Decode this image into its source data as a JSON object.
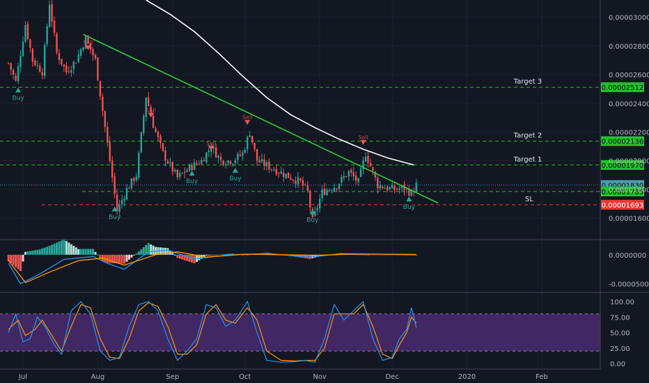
{
  "chart_data": {
    "type": "candlestick",
    "colors": {
      "background": "#131722",
      "up": "#26a69a",
      "down": "#ef5350",
      "ma_line": "#ffffff",
      "trendline": "#2ecc40",
      "level_green": "#22c12a",
      "level_red": "#e53935",
      "current_price": "#4a9fb0",
      "buy_marker": "#26a69a",
      "sell_marker": "#ef5350",
      "macd_line": "#2196f3",
      "signal_line": "#ff9800",
      "hist_pos_strong": "#26a69a",
      "hist_pos_weak": "#b2dfdb",
      "hist_neg_strong": "#ef5350",
      "hist_neg_weak": "#ffcdd2",
      "stoch_band": "#4a2a6e",
      "stoch_k": "#2196f3",
      "stoch_d": "#ff9800"
    },
    "price_axis": {
      "min": 1.45e-05,
      "max": 3.12e-05,
      "ticks": [
        "0.00003000",
        "0.00002800",
        "0.00002600",
        "0.00002400",
        "0.00002200",
        "0.00002000",
        "0.00001800",
        "0.00001600"
      ]
    },
    "x_axis": {
      "labels": [
        "Jul",
        "Aug",
        "Sep",
        "Oct",
        "Nov",
        "Dec",
        "2020",
        "Feb"
      ]
    },
    "levels": [
      {
        "name": "Target 3",
        "value": "0.00002512",
        "style": "green"
      },
      {
        "name": "Target 2",
        "value": "0.00002136",
        "style": "green"
      },
      {
        "name": "Target 1",
        "value": "0.00001970",
        "style": "green"
      },
      {
        "name": "",
        "value": "0.00001830",
        "style": "current"
      },
      {
        "name": "",
        "value": "0.00001785",
        "style": "green"
      },
      {
        "name": "SL",
        "value": "0.00001693",
        "style": "red"
      }
    ],
    "trendline": {
      "from": [
        "Jul 26",
        2.88e-05
      ],
      "to": [
        "Dec 20",
        1.705e-05
      ]
    },
    "ma_line": [
      [
        "Aug 21",
        3.12e-05
      ],
      [
        "Aug 31",
        3.02e-05
      ],
      [
        "Sep 10",
        2.9e-05
      ],
      [
        "Sep 20",
        2.75e-05
      ],
      [
        "Sep 30",
        2.59e-05
      ],
      [
        "Oct 10",
        2.44e-05
      ],
      [
        "Oct 20",
        2.32e-05
      ],
      [
        "Oct 30",
        2.23e-05
      ],
      [
        "Nov 9",
        2.15e-05
      ],
      [
        "Nov 19",
        2.08e-05
      ],
      [
        "Nov 29",
        2.02e-05
      ],
      [
        "Dec 10",
        1.97e-05
      ]
    ],
    "markers": [
      {
        "type": "buy",
        "label": "Buy",
        "date": "Jun 29",
        "price": 2.51e-05
      },
      {
        "type": "sell",
        "label": "Sell",
        "date": "Jul 28",
        "price": 2.77e-05
      },
      {
        "type": "buy",
        "label": "Buy",
        "date": "Aug 8",
        "price": 1.68e-05
      },
      {
        "type": "sell",
        "label": "Sell",
        "date": "Aug 23",
        "price": 2.3e-05
      },
      {
        "type": "buy",
        "label": "Buy",
        "date": "Sep 9",
        "price": 1.93e-05
      },
      {
        "type": "sell",
        "label": "Sell",
        "date": "Sep 17",
        "price": 2.07e-05
      },
      {
        "type": "buy",
        "label": "Buy",
        "date": "Sep 27",
        "price": 1.95e-05
      },
      {
        "type": "sell",
        "label": "Sell",
        "date": "Oct 2",
        "price": 2.25e-05
      },
      {
        "type": "buy",
        "label": "Buy",
        "date": "Oct 29",
        "price": 1.66e-05
      },
      {
        "type": "sell",
        "label": "Sell",
        "date": "Nov 19",
        "price": 2.11e-05
      },
      {
        "type": "buy",
        "label": "Buy",
        "date": "Dec 8",
        "price": 1.75e-05
      }
    ],
    "price_path": [
      [
        "Jun 25",
        2.68e-05
      ],
      [
        "Jun 28",
        2.55e-05
      ],
      [
        "Jul 2",
        2.95e-05
      ],
      [
        "Jul 5",
        2.7e-05
      ],
      [
        "Jul 9",
        2.62e-05
      ],
      [
        "Jul 12",
        3.1e-05
      ],
      [
        "Jul 15",
        2.75e-05
      ],
      [
        "Jul 19",
        2.62e-05
      ],
      [
        "Jul 23",
        2.7e-05
      ],
      [
        "Jul 27",
        2.85e-05
      ],
      [
        "Jul 31",
        2.7e-05
      ],
      [
        "Aug 3",
        2.35e-05
      ],
      [
        "Aug 6",
        2e-05
      ],
      [
        "Aug 9",
        1.65e-05
      ],
      [
        "Aug 13",
        1.8e-05
      ],
      [
        "Aug 17",
        1.9e-05
      ],
      [
        "Aug 21",
        2.45e-05
      ],
      [
        "Aug 24",
        2.25e-05
      ],
      [
        "Aug 28",
        2.05e-05
      ],
      [
        "Sep 3",
        1.88e-05
      ],
      [
        "Sep 8",
        1.95e-05
      ],
      [
        "Sep 13",
        2e-05
      ],
      [
        "Sep 17",
        2.1e-05
      ],
      [
        "Sep 21",
        2e-05
      ],
      [
        "Sep 26",
        2e-05
      ],
      [
        "Sep 30",
        2.05e-05
      ],
      [
        "Oct 3",
        2.2e-05
      ],
      [
        "Oct 6",
        2e-05
      ],
      [
        "Oct 12",
        1.95e-05
      ],
      [
        "Oct 18",
        1.9e-05
      ],
      [
        "Oct 24",
        1.85e-05
      ],
      [
        "Oct 27",
        1.78e-05
      ],
      [
        "Oct 29",
        1.58e-05
      ],
      [
        "Nov 2",
        1.78e-05
      ],
      [
        "Nov 8",
        1.83e-05
      ],
      [
        "Nov 13",
        1.92e-05
      ],
      [
        "Nov 17",
        1.85e-05
      ],
      [
        "Nov 20",
        2.05e-05
      ],
      [
        "Nov 25",
        1.83e-05
      ],
      [
        "Dec 1",
        1.8e-05
      ],
      [
        "Dec 6",
        1.81e-05
      ],
      [
        "Dec 9",
        1.77e-05
      ],
      [
        "Dec 11",
        1.83e-05
      ]
    ],
    "macd": {
      "axis_ticks": [
        "0.0000000",
        "-0.0000500"
      ],
      "range": [
        -6.5e-05,
        2.5e-05
      ],
      "macd": [
        [
          "Jun 25",
          -1.5e-05
        ],
        [
          "Jun 30",
          -5e-05
        ],
        [
          "Jul 8",
          -3.3e-05
        ],
        [
          "Jul 18",
          -8e-06
        ],
        [
          "Jul 30",
          -3e-06
        ],
        [
          "Aug 5",
          -1.5e-05
        ],
        [
          "Aug 12",
          -2.5e-05
        ],
        [
          "Aug 22",
          5e-06
        ],
        [
          "Aug 30",
          8e-06
        ],
        [
          "Sep 10",
          -7e-06
        ],
        [
          "Sep 25",
          0.0
        ],
        [
          "Oct 10",
          2e-06
        ],
        [
          "Oct 28",
          -4e-06
        ],
        [
          "Nov 10",
          2e-06
        ],
        [
          "Nov 25",
          1e-06
        ],
        [
          "Dec 11",
          0.0
        ]
      ],
      "signal": [
        [
          "Jun 25",
          -1e-05
        ],
        [
          "Jul 2",
          -4.8e-05
        ],
        [
          "Jul 12",
          -3e-05
        ],
        [
          "Jul 24",
          -1e-05
        ],
        [
          "Aug 3",
          -6e-06
        ],
        [
          "Aug 12",
          -1.8e-05
        ],
        [
          "Aug 25",
          0.0
        ],
        [
          "Sep 3",
          5e-06
        ],
        [
          "Sep 15",
          -4e-06
        ],
        [
          "Oct 1",
          1e-06
        ],
        [
          "Oct 15",
          0.0
        ],
        [
          "Nov 1",
          -1e-06
        ],
        [
          "Nov 15",
          1.5e-06
        ],
        [
          "Dec 11",
          5e-07
        ]
      ]
    },
    "stochastic": {
      "axis_ticks": [
        "100.00",
        "75.00",
        "50.00",
        "25.00",
        "0.00"
      ],
      "band": [
        20,
        80
      ],
      "k": [
        [
          "Jun 25",
          50
        ],
        [
          "Jun 28",
          80
        ],
        [
          "Jul 1",
          35
        ],
        [
          "Jul 4",
          40
        ],
        [
          "Jul 7",
          75
        ],
        [
          "Jul 10",
          60
        ],
        [
          "Jul 14",
          30
        ],
        [
          "Jul 17",
          15
        ],
        [
          "Jul 21",
          85
        ],
        [
          "Jul 25",
          100
        ],
        [
          "Jul 29",
          80
        ],
        [
          "Aug 2",
          20
        ],
        [
          "Aug 6",
          5
        ],
        [
          "Aug 10",
          10
        ],
        [
          "Aug 14",
          60
        ],
        [
          "Aug 18",
          95
        ],
        [
          "Aug 22",
          100
        ],
        [
          "Aug 26",
          85
        ],
        [
          "Aug 30",
          40
        ],
        [
          "Sep 3",
          5
        ],
        [
          "Sep 7",
          20
        ],
        [
          "Sep 11",
          40
        ],
        [
          "Sep 15",
          95
        ],
        [
          "Sep 19",
          90
        ],
        [
          "Sep 23",
          60
        ],
        [
          "Sep 27",
          70
        ],
        [
          "Oct 2",
          100
        ],
        [
          "Oct 6",
          50
        ],
        [
          "Oct 10",
          5
        ],
        [
          "Oct 16",
          2
        ],
        [
          "Oct 22",
          3
        ],
        [
          "Oct 26",
          5
        ],
        [
          "Oct 30",
          2
        ],
        [
          "Nov 3",
          40
        ],
        [
          "Nov 7",
          95
        ],
        [
          "Nov 11",
          70
        ],
        [
          "Nov 15",
          85
        ],
        [
          "Nov 19",
          100
        ],
        [
          "Nov 23",
          40
        ],
        [
          "Nov 27",
          5
        ],
        [
          "Dec 1",
          10
        ],
        [
          "Dec 4",
          40
        ],
        [
          "Dec 7",
          55
        ],
        [
          "Dec 9",
          90
        ],
        [
          "Dec 11",
          58
        ]
      ],
      "d": [
        [
          "Jun 25",
          55
        ],
        [
          "Jun 29",
          70
        ],
        [
          "Jul 2",
          45
        ],
        [
          "Jul 6",
          55
        ],
        [
          "Jul 9",
          70
        ],
        [
          "Jul 13",
          45
        ],
        [
          "Jul 17",
          20
        ],
        [
          "Jul 21",
          60
        ],
        [
          "Jul 25",
          95
        ],
        [
          "Jul 29",
          90
        ],
        [
          "Aug 2",
          40
        ],
        [
          "Aug 6",
          10
        ],
        [
          "Aug 10",
          8
        ],
        [
          "Aug 14",
          40
        ],
        [
          "Aug 18",
          85
        ],
        [
          "Aug 22",
          98
        ],
        [
          "Aug 26",
          92
        ],
        [
          "Aug 30",
          60
        ],
        [
          "Sep 3",
          15
        ],
        [
          "Sep 7",
          15
        ],
        [
          "Sep 11",
          30
        ],
        [
          "Sep 15",
          80
        ],
        [
          "Sep 19",
          95
        ],
        [
          "Sep 23",
          70
        ],
        [
          "Sep 27",
          65
        ],
        [
          "Oct 2",
          90
        ],
        [
          "Oct 6",
          70
        ],
        [
          "Oct 10",
          20
        ],
        [
          "Oct 16",
          5
        ],
        [
          "Oct 22",
          4
        ],
        [
          "Oct 26",
          5
        ],
        [
          "Oct 30",
          5
        ],
        [
          "Nov 3",
          25
        ],
        [
          "Nov 7",
          80
        ],
        [
          "Nov 11",
          80
        ],
        [
          "Nov 15",
          80
        ],
        [
          "Nov 19",
          95
        ],
        [
          "Nov 23",
          60
        ],
        [
          "Nov 27",
          15
        ],
        [
          "Dec 1",
          8
        ],
        [
          "Dec 4",
          30
        ],
        [
          "Dec 7",
          50
        ],
        [
          "Dec 9",
          75
        ],
        [
          "Dec 11",
          65
        ]
      ]
    }
  }
}
